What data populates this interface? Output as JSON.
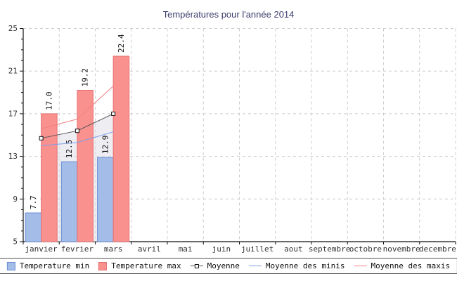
{
  "title": "Températures pour l'année 2014",
  "chart_data": {
    "type": "bar",
    "title": "Températures pour l'année 2014",
    "categories": [
      "janvier",
      "fevrier",
      "mars",
      "avril",
      "mai",
      "juin",
      "juillet",
      "aout",
      "septembre",
      "octobre",
      "novembre",
      "decembre"
    ],
    "ylim": [
      5,
      25
    ],
    "y_ticks": [
      5,
      9,
      13,
      17,
      21,
      25
    ],
    "y_minor_step": 1,
    "grid": true,
    "legend_position": "bottom",
    "bar_series": [
      {
        "name": "Temperature min",
        "color": "#a3bde8",
        "border": "#6d8fd4",
        "values": [
          7.7,
          12.5,
          12.9,
          null,
          null,
          null,
          null,
          null,
          null,
          null,
          null,
          null
        ]
      },
      {
        "name": "Temperature max",
        "color": "#f9918f",
        "border": "#e57070",
        "values": [
          17.0,
          19.2,
          22.4,
          null,
          null,
          null,
          null,
          null,
          null,
          null,
          null,
          null
        ]
      }
    ],
    "line_series": [
      {
        "name": "Moyenne",
        "color": "#555555",
        "marker": "square",
        "area_fill": "#dfdfe8",
        "values": [
          14.7,
          15.4,
          17.0,
          null,
          null,
          null,
          null,
          null,
          null,
          null,
          null,
          null
        ]
      },
      {
        "name": "Moyenne des minis",
        "color": "#7e9ee8",
        "values": [
          14.0,
          14.3,
          15.3,
          null,
          null,
          null,
          null,
          null,
          null,
          null,
          null,
          null
        ]
      },
      {
        "name": "Moyenne des maxis",
        "color": "#f28080",
        "values": [
          15.6,
          16.5,
          19.6,
          null,
          null,
          null,
          null,
          null,
          null,
          null,
          null,
          null
        ]
      }
    ],
    "bar_label_decimals": 1,
    "colors": {
      "title": "#3c3c6e",
      "axis": "#111111",
      "grid": "#cccccc",
      "text": "#333333"
    }
  }
}
